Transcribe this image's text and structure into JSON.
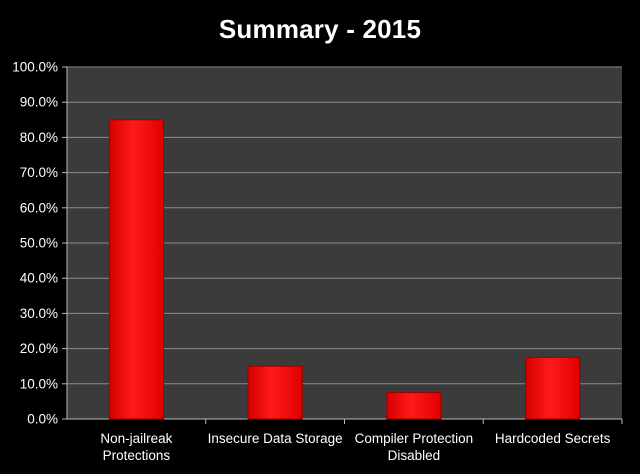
{
  "chart_data": {
    "type": "bar",
    "title": "Summary - 2015",
    "categories": [
      [
        "Non-jailreak",
        "Protections"
      ],
      [
        "Insecure Data Storage"
      ],
      [
        "Compiler Protection",
        "Disabled"
      ],
      [
        "Hardcoded Secrets"
      ]
    ],
    "values": [
      85.0,
      15.0,
      7.5,
      17.5
    ],
    "ylim": [
      0,
      100
    ],
    "yticks": [
      0,
      10,
      20,
      30,
      40,
      50,
      60,
      70,
      80,
      90,
      100
    ],
    "ytick_labels": [
      "0.0%",
      "10.0%",
      "20.0%",
      "30.0%",
      "40.0%",
      "50.0%",
      "60.0%",
      "70.0%",
      "80.0%",
      "90.0%",
      "100.0%"
    ],
    "xlabel": "",
    "ylabel": "",
    "grid": true,
    "legend": "none",
    "colors": {
      "background": "#000000",
      "plot_area": "#3b3b3b",
      "gridline": "#8a8a8a",
      "bar": "#ff0000",
      "bar_edge": "#9c0000",
      "text": "#ffffff"
    }
  }
}
